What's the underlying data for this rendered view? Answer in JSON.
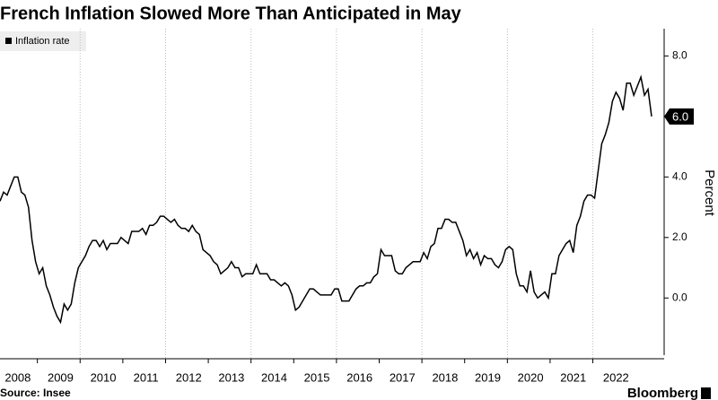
{
  "chart_data": {
    "type": "line",
    "title": "French Inflation Slowed More Than Anticipated in May",
    "y_label": "Percent",
    "source": "Source: Insee",
    "brand": "Bloomberg",
    "legend": "top-left",
    "ylim": [
      -1.8,
      8.9
    ],
    "yticks": [
      {
        "value": 0,
        "label": "0.0"
      },
      {
        "value": 2,
        "label": "2.0"
      },
      {
        "value": 4,
        "label": "4.0"
      },
      {
        "value": 6,
        "label": "6.0"
      },
      {
        "value": 8,
        "label": "8.0"
      }
    ],
    "categories": [
      null,
      null,
      null,
      null,
      null,
      "2008",
      null,
      null,
      null,
      null,
      null,
      null,
      null,
      null,
      null,
      null,
      null,
      "2009",
      null,
      null,
      null,
      null,
      null,
      null,
      null,
      null,
      null,
      null,
      null,
      "2010",
      null,
      null,
      null,
      null,
      null,
      null,
      null,
      null,
      null,
      null,
      null,
      "2011",
      null,
      null,
      null,
      null,
      null,
      null,
      null,
      null,
      null,
      null,
      null,
      "2012",
      null,
      null,
      null,
      null,
      null,
      null,
      null,
      null,
      null,
      null,
      null,
      "2013",
      null,
      null,
      null,
      null,
      null,
      null,
      null,
      null,
      null,
      null,
      null,
      "2014",
      null,
      null,
      null,
      null,
      null,
      null,
      null,
      null,
      null,
      null,
      null,
      "2015",
      null,
      null,
      null,
      null,
      null,
      null,
      null,
      null,
      null,
      null,
      null,
      "2016",
      null,
      null,
      null,
      null,
      null,
      null,
      null,
      null,
      null,
      null,
      null,
      "2017",
      null,
      null,
      null,
      null,
      null,
      null,
      null,
      null,
      null,
      null,
      null,
      "2018",
      null,
      null,
      null,
      null,
      null,
      null,
      null,
      null,
      null,
      null,
      null,
      "2019",
      null,
      null,
      null,
      null,
      null,
      null,
      null,
      null,
      null,
      null,
      null,
      "2020",
      null,
      null,
      null,
      null,
      null,
      null,
      null,
      null,
      null,
      null,
      null,
      "2021",
      null,
      null,
      null,
      null,
      null,
      null,
      null,
      null,
      null,
      null,
      null,
      "2022",
      null,
      null,
      null,
      null,
      null,
      null,
      null,
      null,
      null,
      null
    ],
    "series": [
      {
        "name": "Inflation rate",
        "color": "#000000",
        "values": [
          3.2,
          3.5,
          3.4,
          3.7,
          4.0,
          4.0,
          3.5,
          3.4,
          3.0,
          1.9,
          1.2,
          0.8,
          1.0,
          0.4,
          0.1,
          -0.3,
          -0.6,
          -0.8,
          -0.2,
          -0.4,
          -0.2,
          0.5,
          1.0,
          1.2,
          1.4,
          1.7,
          1.9,
          1.9,
          1.7,
          1.9,
          1.6,
          1.8,
          1.8,
          1.8,
          2.0,
          1.9,
          1.8,
          2.2,
          2.2,
          2.2,
          2.3,
          2.1,
          2.4,
          2.4,
          2.5,
          2.7,
          2.7,
          2.6,
          2.5,
          2.6,
          2.4,
          2.3,
          2.3,
          2.2,
          2.4,
          2.2,
          2.1,
          1.6,
          1.5,
          1.4,
          1.2,
          1.1,
          0.8,
          0.9,
          1.0,
          1.2,
          1.0,
          1.0,
          0.7,
          0.8,
          0.8,
          0.8,
          1.1,
          0.8,
          0.8,
          0.8,
          0.6,
          0.6,
          0.5,
          0.4,
          0.5,
          0.4,
          0.1,
          -0.4,
          -0.3,
          -0.1,
          0.1,
          0.3,
          0.3,
          0.2,
          0.1,
          0.1,
          0.1,
          0.1,
          0.3,
          0.3,
          -0.1,
          -0.1,
          -0.1,
          0.1,
          0.3,
          0.4,
          0.4,
          0.5,
          0.5,
          0.7,
          0.8,
          1.6,
          1.4,
          1.4,
          1.4,
          0.9,
          0.8,
          0.8,
          1.0,
          1.1,
          1.2,
          1.2,
          1.2,
          1.5,
          1.3,
          1.7,
          1.8,
          2.3,
          2.3,
          2.6,
          2.6,
          2.5,
          2.5,
          2.2,
          1.9,
          1.4,
          1.6,
          1.3,
          1.5,
          1.1,
          1.4,
          1.3,
          1.3,
          1.1,
          1.0,
          1.2,
          1.6,
          1.7,
          1.6,
          0.8,
          0.4,
          0.4,
          0.2,
          0.9,
          0.2,
          0.0,
          0.1,
          0.2,
          0.0,
          0.8,
          0.8,
          1.4,
          1.6,
          1.8,
          1.9,
          1.5,
          2.4,
          2.7,
          3.2,
          3.4,
          3.4,
          3.3,
          4.2,
          5.1,
          5.4,
          5.8,
          6.5,
          6.8,
          6.6,
          6.2,
          7.1,
          7.1,
          6.7,
          7.0,
          7.3,
          6.7,
          6.9,
          6.0
        ],
        "value_labels": [
          null,
          null,
          null,
          null,
          null,
          null,
          null,
          null,
          null,
          null,
          null,
          null,
          null,
          null,
          null,
          null,
          null,
          null,
          null,
          null,
          null,
          null,
          null,
          null,
          null,
          null,
          null,
          null,
          null,
          null,
          null,
          null,
          null,
          null,
          null,
          null,
          null,
          null,
          null,
          null,
          null,
          null,
          null,
          null,
          null,
          null,
          null,
          null,
          null,
          null,
          null,
          null,
          null,
          null,
          null,
          null,
          null,
          null,
          null,
          null,
          null,
          null,
          null,
          null,
          null,
          null,
          null,
          null,
          null,
          null,
          null,
          null,
          null,
          null,
          null,
          null,
          null,
          null,
          null,
          null,
          null,
          null,
          null,
          null,
          null,
          null,
          null,
          null,
          null,
          null,
          null,
          null,
          null,
          null,
          null,
          null,
          null,
          null,
          null,
          null,
          null,
          null,
          null,
          null,
          null,
          null,
          null,
          null,
          null,
          null,
          null,
          null,
          null,
          null,
          null,
          null,
          null,
          null,
          null,
          null,
          null,
          null,
          null,
          null,
          null,
          null,
          null,
          null,
          null,
          null,
          null,
          null,
          null,
          null,
          null,
          null,
          null,
          null,
          null,
          null,
          null,
          null,
          null,
          null,
          null,
          null,
          null,
          null,
          null,
          null,
          null,
          null,
          null,
          null,
          null,
          null,
          null,
          null,
          null,
          null,
          null,
          null,
          null,
          null,
          null,
          null,
          null,
          null,
          null,
          null,
          null,
          null,
          null,
          null,
          null,
          null,
          null,
          null,
          null,
          null,
          null,
          null,
          null,
          "6.0"
        ]
      }
    ]
  }
}
